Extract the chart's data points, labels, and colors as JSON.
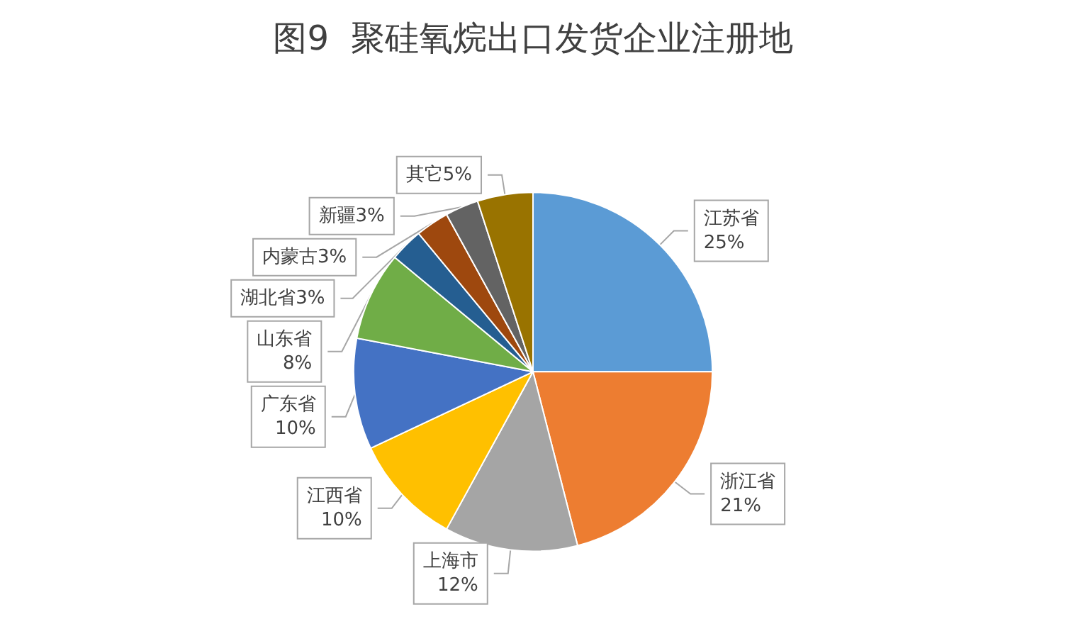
{
  "chart_data": {
    "type": "pie",
    "title": "图9  聚硅氧烷出口发货企业注册地",
    "categories": [
      "江苏省",
      "浙江省",
      "上海市",
      "江西省",
      "广东省",
      "山东省",
      "湖北省",
      "内蒙古",
      "新疆",
      "其它"
    ],
    "values": [
      25,
      21,
      12,
      10,
      10,
      8,
      3,
      3,
      3,
      5
    ],
    "value_labels": [
      "25%",
      "21%",
      "12%",
      "10%",
      "10%",
      "8%",
      "3%",
      "3%",
      "3%",
      "5%"
    ],
    "colors": [
      "#5b9bd5",
      "#ed7d31",
      "#a5a5a5",
      "#ffc000",
      "#4472c4",
      "#70ad47",
      "#255e91",
      "#9e480e",
      "#636363",
      "#997300"
    ],
    "legend": false
  }
}
